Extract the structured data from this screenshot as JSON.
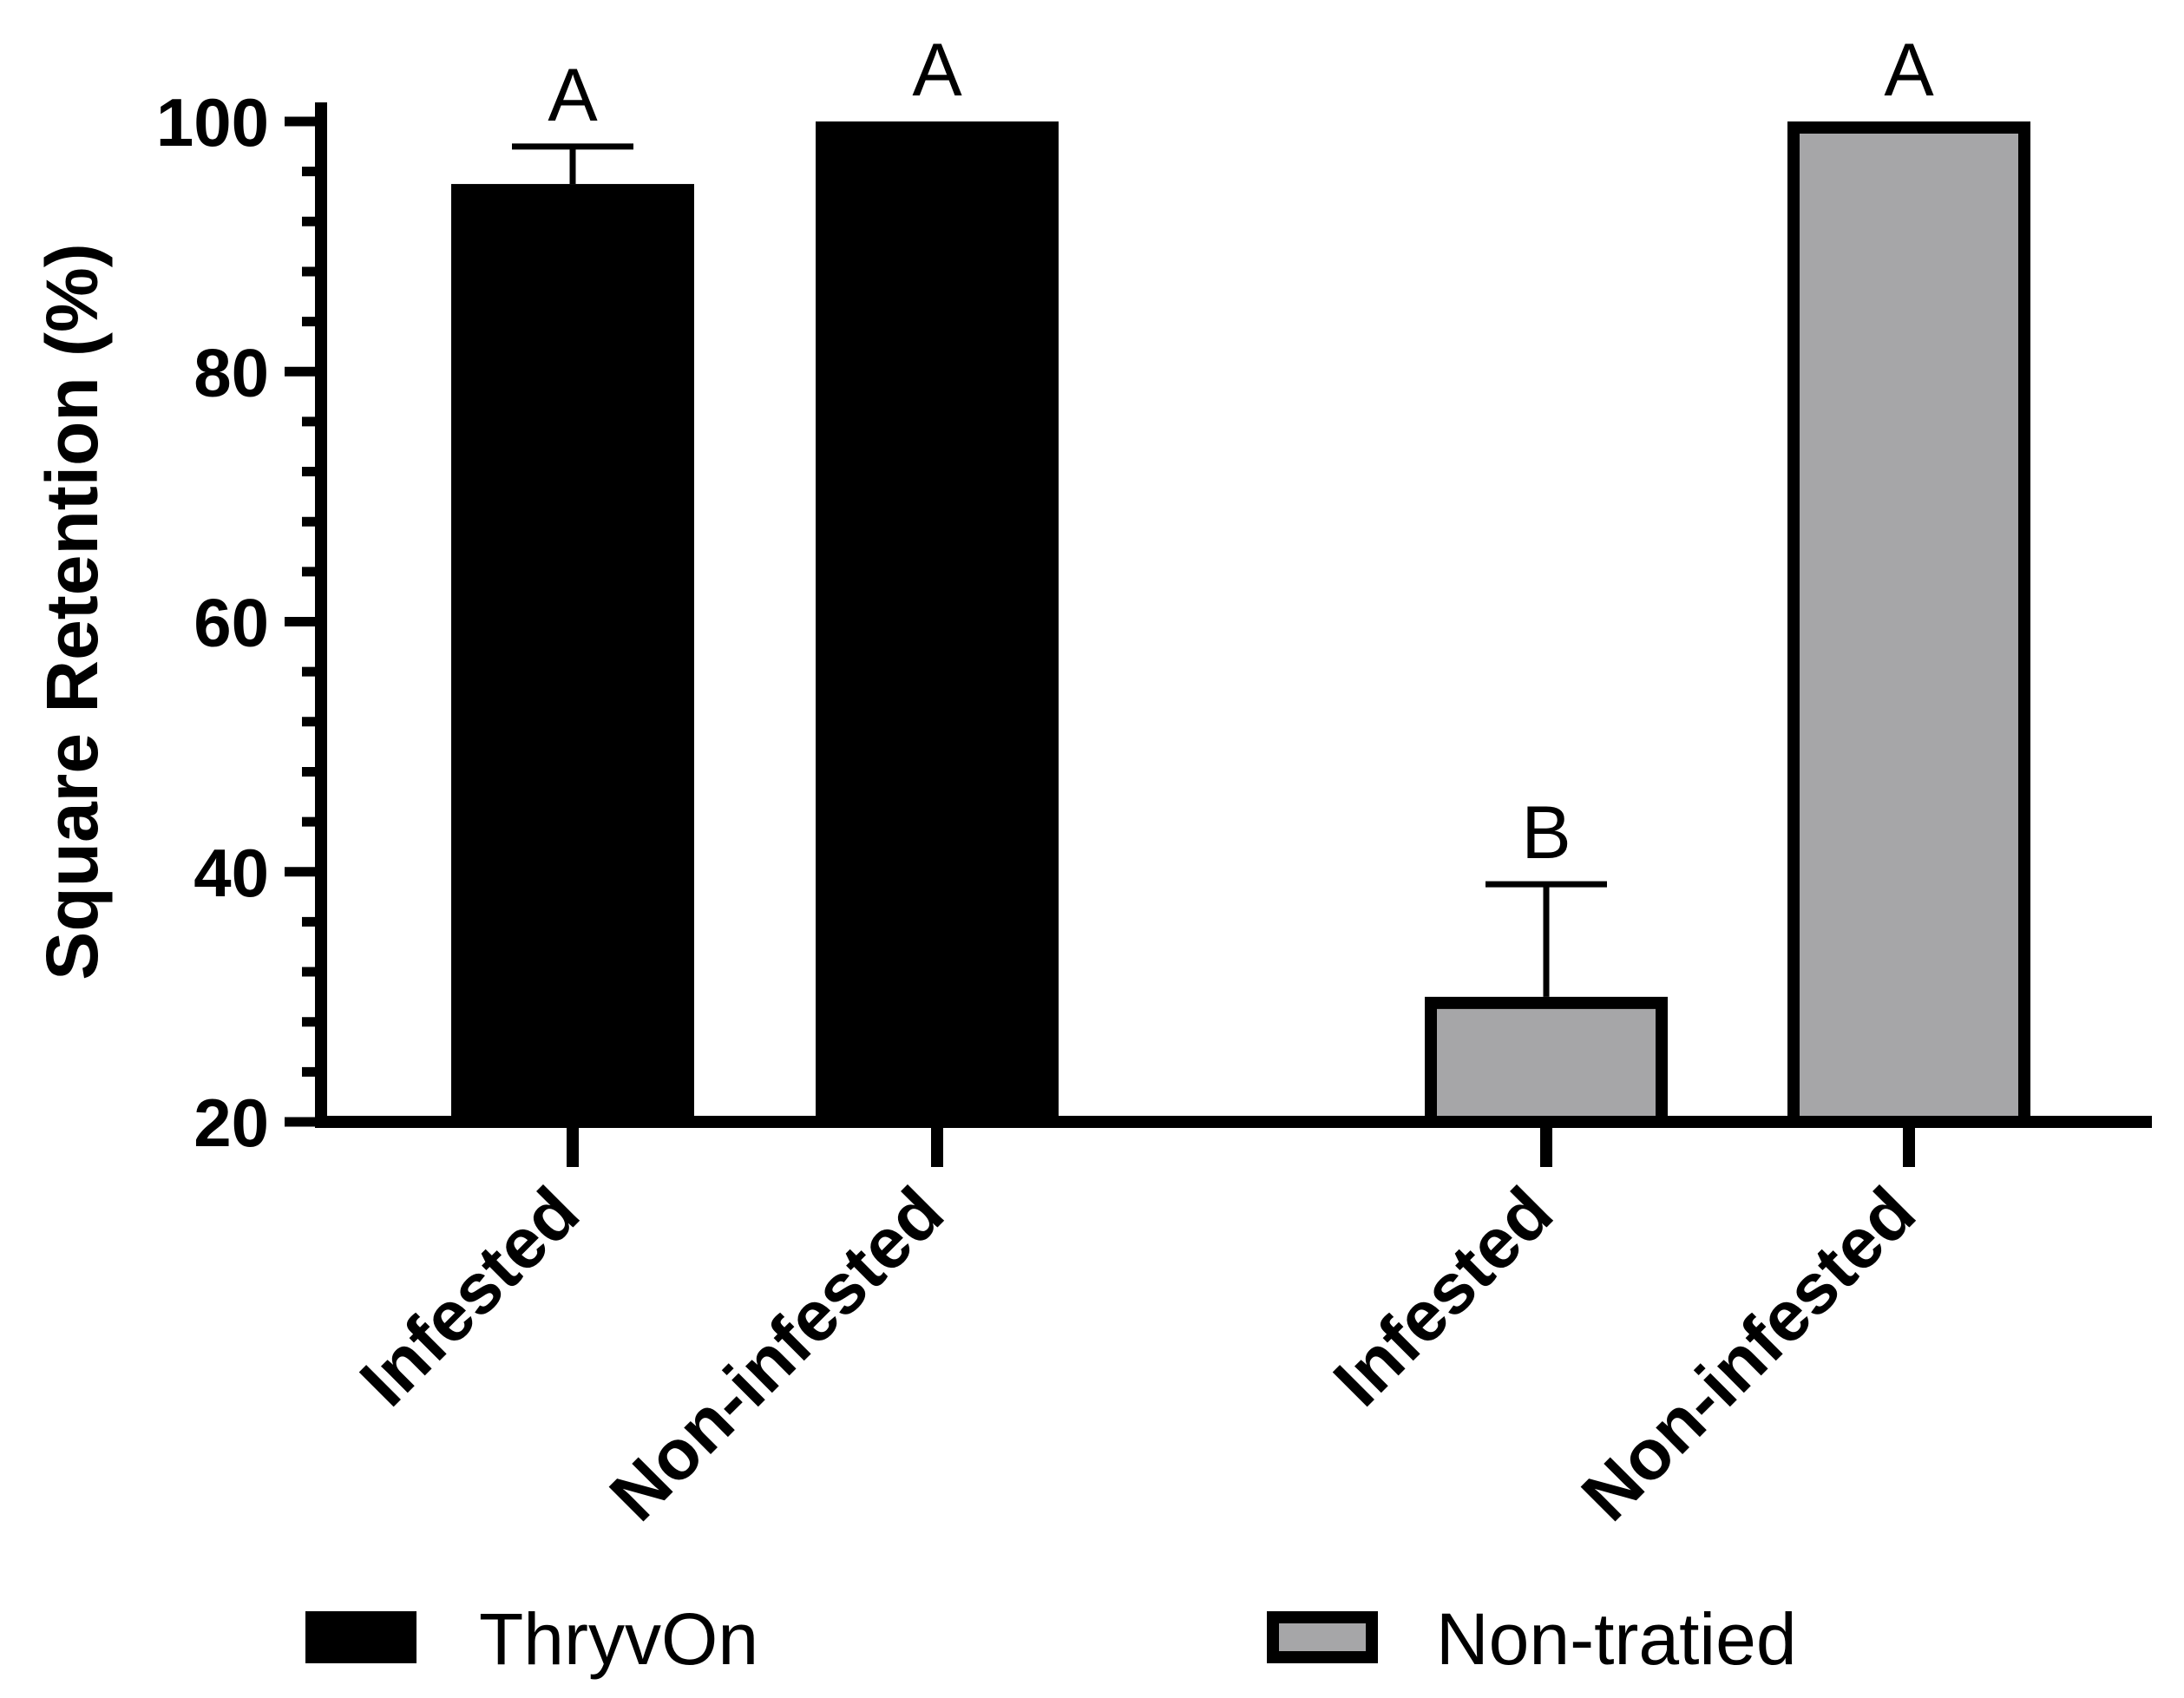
{
  "chart_data": {
    "type": "bar",
    "title": "",
    "xlabel": "",
    "ylabel": "Square Retention (%)",
    "ylim": [
      20,
      100
    ],
    "yticks": [
      20,
      40,
      60,
      80,
      100
    ],
    "grid": false,
    "legend_position": "bottom",
    "bars": [
      {
        "category": "Infested",
        "series": "ThryvOn",
        "value": 95,
        "error": 3,
        "significance": "A"
      },
      {
        "category": "Non-infested",
        "series": "ThryvOn",
        "value": 100,
        "error": 0,
        "significance": "A"
      },
      {
        "category": "Infested",
        "series": "Non-tratied",
        "value": 30,
        "error": 9,
        "significance": "B"
      },
      {
        "category": "Non-infested",
        "series": "Non-tratied",
        "value": 100,
        "error": 0,
        "significance": "A"
      }
    ],
    "series": [
      {
        "name": "ThryvOn",
        "color": "#000000",
        "values": [
          95,
          100
        ]
      },
      {
        "name": "Non-tratied",
        "color": "#a6a6a8",
        "values": [
          30,
          100
        ]
      }
    ],
    "categories": [
      "Infested",
      "Non-infested"
    ]
  }
}
